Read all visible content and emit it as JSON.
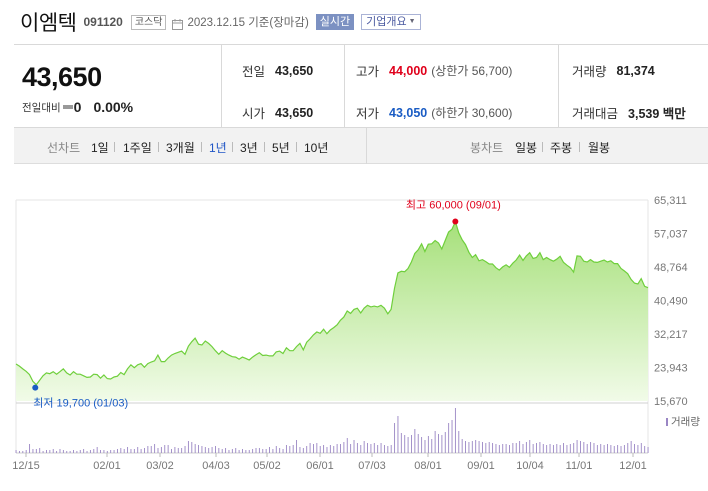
{
  "header": {
    "name": "이엠텍",
    "code": "091120",
    "market": "코스닥",
    "date": "2023.12.15 기준(장마감)",
    "realtime": "실시간",
    "company_info": "기업개요"
  },
  "price": {
    "current": "43,650",
    "change_label": "전일대비",
    "change": "0",
    "change_rate": "0.00%"
  },
  "quote": {
    "prev_close_label": "전일",
    "prev_close": "43,650",
    "high_label": "고가",
    "high": "44,000",
    "upper_limit": "(상한가 56,700)",
    "volume_label": "거래량",
    "volume": "81,374",
    "open_label": "시가",
    "open": "43,650",
    "low_label": "저가",
    "low": "43,050",
    "lower_limit": "(하한가 30,600)",
    "amount_label": "거래대금",
    "amount": "3,539 백만"
  },
  "tabs": {
    "line_label": "선차트",
    "line_periods": [
      "1일",
      "1주일",
      "3개월",
      "1년",
      "3년",
      "5년",
      "10년"
    ],
    "active_period": "1년",
    "candle_label": "봉차트",
    "candle_periods": [
      "일봉",
      "주봉",
      "월봉"
    ]
  },
  "colors": {
    "up": "#e0001b",
    "down": "#1a5cc4",
    "line": "#6fcf3c",
    "volume": "#9a86c4"
  },
  "chart_data": {
    "type": "area",
    "y_ticks": [
      "65,311",
      "57,037",
      "48,764",
      "40,490",
      "32,217",
      "23,943",
      "15,670"
    ],
    "ylim": [
      15670,
      65311
    ],
    "x_ticks": [
      "12/15",
      "02/01",
      "03/02",
      "04/03",
      "05/02",
      "06/01",
      "07/03",
      "08/01",
      "09/01",
      "10/04",
      "11/01",
      "12/01"
    ],
    "max_label": "최고 60,000 (09/01)",
    "min_label": "최저 19,700 (01/03)",
    "volume_label": "거래량",
    "series": [
      {
        "values": [
          24800,
          24300,
          23600,
          23000,
          22200,
          20500,
          19700,
          20800,
          21900,
          22600,
          22400,
          22900,
          22300,
          22900,
          23600,
          22600,
          22100,
          22900,
          22300,
          22300,
          21900,
          21500,
          21600,
          22300,
          22200,
          21300,
          22100,
          21200,
          21100,
          21600,
          21800,
          22700,
          22200,
          23600,
          24600,
          23900,
          24600,
          24900,
          24000,
          24900,
          25300,
          25600,
          27000,
          25400,
          25400,
          26300,
          27000,
          27400,
          27700,
          28000,
          27200,
          29200,
          30300,
          31200,
          29700,
          29500,
          30500,
          29900,
          29100,
          28100,
          27200,
          28100,
          27500,
          27000,
          26600,
          26500,
          26000,
          26500,
          26200,
          25800,
          26500,
          27100,
          27600,
          26900,
          27000,
          26800,
          26800,
          27800,
          28000,
          27400,
          28800,
          28100,
          28100,
          29100,
          29900,
          28300,
          30200,
          31000,
          32000,
          32700,
          32400,
          33400,
          32300,
          33200,
          33800,
          34500,
          35600,
          36400,
          37900,
          37300,
          38300,
          38600,
          37400,
          38600,
          39300,
          38900,
          39100,
          38900,
          39300,
          38600,
          37200,
          38300,
          43500,
          47300,
          47700,
          47600,
          48400,
          50000,
          52100,
          53000,
          54500,
          52600,
          54400,
          54500,
          55300,
          54700,
          53200,
          55300,
          57400,
          58100,
          60000,
          57200,
          55500,
          54300,
          52400,
          51100,
          51800,
          50300,
          50600,
          50100,
          49500,
          49500,
          48600,
          48000,
          48800,
          49300,
          48700,
          49700,
          50500,
          51700,
          50400,
          51500,
          52300,
          50900,
          51100,
          52300,
          50600,
          51100,
          50600,
          50200,
          50700,
          51400,
          49900,
          49200,
          48600,
          47500,
          51500,
          51400,
          50200,
          50000,
          50600,
          50000,
          49900,
          50200,
          50500,
          50000,
          50300,
          49600,
          49600,
          48400,
          47800,
          47100,
          45700,
          44800,
          44600,
          45900,
          44000,
          43650
        ],
        "volume": [
          3,
          2,
          2,
          3,
          9,
          4,
          4,
          5,
          2,
          3,
          3,
          4,
          2,
          4,
          3,
          2,
          2,
          3,
          2,
          3,
          4,
          2,
          3,
          4,
          6,
          3,
          3,
          2,
          3,
          3,
          4,
          5,
          4,
          6,
          4,
          4,
          6,
          4,
          5,
          7,
          7,
          9,
          5,
          6,
          8,
          8,
          4,
          6,
          5,
          5,
          7,
          12,
          11,
          9,
          8,
          7,
          6,
          5,
          6,
          7,
          5,
          4,
          5,
          3,
          4,
          5,
          3,
          4,
          3,
          3,
          4,
          5,
          5,
          4,
          4,
          6,
          4,
          7,
          5,
          4,
          8,
          7,
          8,
          13,
          6,
          5,
          7,
          10,
          9,
          10,
          7,
          8,
          6,
          8,
          7,
          9,
          9,
          11,
          15,
          9,
          13,
          10,
          8,
          12,
          10,
          9,
          10,
          8,
          10,
          8,
          7,
          8,
          30,
          37,
          20,
          18,
          16,
          18,
          24,
          19,
          16,
          13,
          17,
          14,
          22,
          19,
          18,
          21,
          30,
          33,
          45,
          22,
          14,
          12,
          11,
          12,
          13,
          12,
          11,
          10,
          11,
          10,
          9,
          8,
          9,
          9,
          8,
          10,
          10,
          12,
          9,
          11,
          13,
          9,
          10,
          11,
          9,
          8,
          9,
          8,
          9,
          8,
          10,
          8,
          9,
          10,
          13,
          12,
          11,
          9,
          11,
          10,
          8,
          9,
          8,
          9,
          8,
          7,
          8,
          7,
          8,
          10,
          12,
          9,
          8,
          10,
          7,
          6
        ]
      }
    ]
  }
}
